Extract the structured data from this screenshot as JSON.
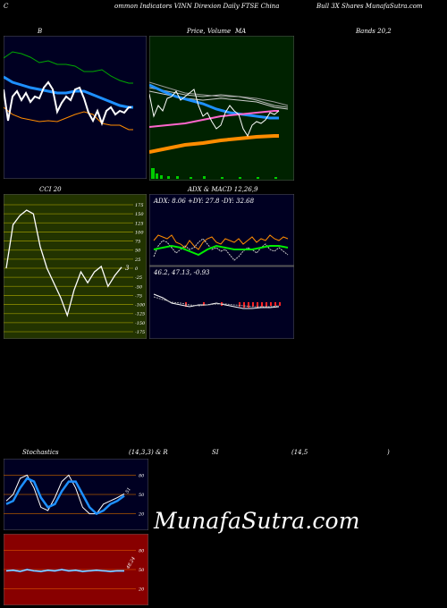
{
  "header": {
    "left": "C",
    "middle": "ommon  Indicators VINN  Direxion  Daily FTSE China",
    "right": "Bull 3X  Shares MunafaSutra.com"
  },
  "panels": {
    "bollinger": {
      "title": "B"
    },
    "price": {
      "title_a": "Price,",
      "title_b": "Volume",
      "title_c": "MA"
    },
    "bands": {
      "title": "Bands 20,2"
    },
    "cci": {
      "title": "CCI 20",
      "current": "3",
      "ticks": [
        "175",
        "150",
        "125",
        "100",
        "75",
        "50",
        "25",
        "0",
        "-25",
        "-50",
        "-75",
        "-100",
        "-125",
        "-150",
        "-175"
      ]
    },
    "adx": {
      "title": "ADX  & MACD 12,26,9",
      "label": "ADX: 8.06  +DY: 27.8  -DY: 32.68",
      "macd_label": "46.2,  47.13,  -0.93"
    },
    "stoch": {
      "title_a": "Stochastics",
      "title_b": "(14,3,3) & R",
      "title_c": "SI",
      "title_d": "(14,5",
      "title_e": ")",
      "ticks": [
        "80",
        "50",
        "20"
      ],
      "current": "51"
    },
    "rsi": {
      "ticks": [
        "80",
        "50",
        "20"
      ],
      "current": "48.24"
    }
  },
  "watermark": "MunafaSutra.com",
  "colors": {
    "bg": "#000000",
    "navy": "#000022",
    "green_bg": "#002200",
    "olive_bg": "#223300",
    "red_bg": "#880000",
    "blue": "#1e90ff",
    "orange": "#ff8c00",
    "green": "#00cc00",
    "magenta": "#ff66cc"
  },
  "chart_data": [
    {
      "type": "line",
      "panel": "CCI 20",
      "x": [
        1,
        2,
        3,
        4,
        5,
        6,
        7,
        8,
        9,
        10,
        11,
        12,
        13,
        14,
        15,
        16,
        17,
        18
      ],
      "values": [
        0,
        120,
        145,
        160,
        150,
        60,
        0,
        -40,
        -80,
        -130,
        -60,
        -10,
        -40,
        -10,
        5,
        -50,
        -20,
        3
      ],
      "ylim": [
        -175,
        175
      ]
    },
    {
      "type": "line",
      "panel": "Stochastics",
      "series": [
        {
          "values": [
            40,
            50,
            75,
            80,
            60,
            30,
            25,
            45,
            70,
            80,
            60,
            30,
            20,
            20,
            35,
            40,
            45,
            51
          ]
        },
        {
          "values": [
            35,
            40,
            60,
            75,
            70,
            45,
            30,
            35,
            55,
            70,
            70,
            50,
            30,
            20,
            25,
            35,
            40,
            48
          ]
        }
      ],
      "ylim": [
        0,
        100
      ]
    },
    {
      "type": "line",
      "panel": "RSI",
      "series": [
        {
          "values": [
            48,
            49,
            47,
            50,
            48,
            47,
            49,
            48,
            50,
            48,
            49,
            47,
            48,
            49,
            48,
            47,
            48,
            48
          ]
        }
      ],
      "ylim": [
        0,
        100
      ]
    }
  ]
}
